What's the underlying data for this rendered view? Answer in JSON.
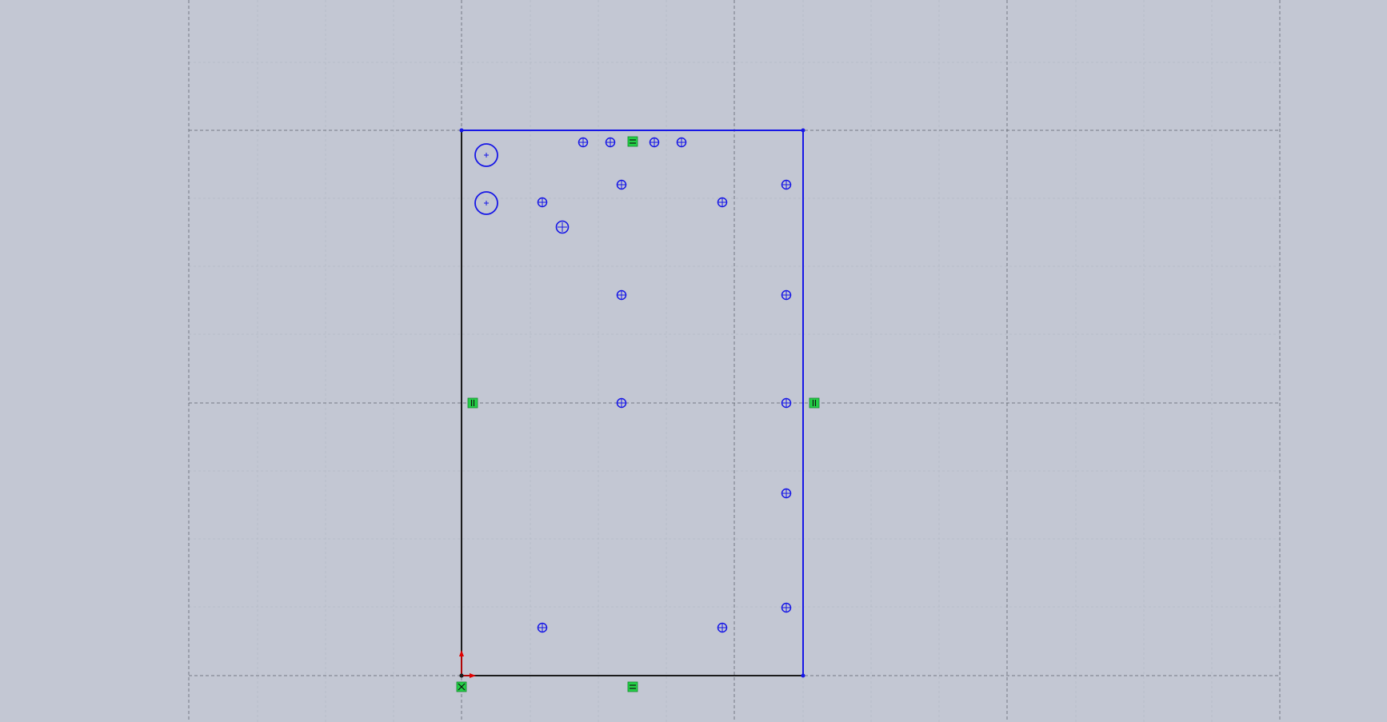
{
  "app": {
    "view": "sketch-canvas"
  },
  "colors": {
    "background": "#c3c7d3",
    "minor_grid": "#b7bcc8",
    "major_grid": "#555a63",
    "sketch_blue": "#1717e6",
    "sketch_black": "#1b1b1b",
    "relation_green": "#23d046",
    "origin_red": "#e10000"
  },
  "icons": {
    "relation_horizontal": "equals-relation-icon",
    "relation_vertical": "vertical-relation-icon",
    "relation_fixed": "fixed-relation-icon",
    "hole": "crosshair-hole-icon"
  }
}
